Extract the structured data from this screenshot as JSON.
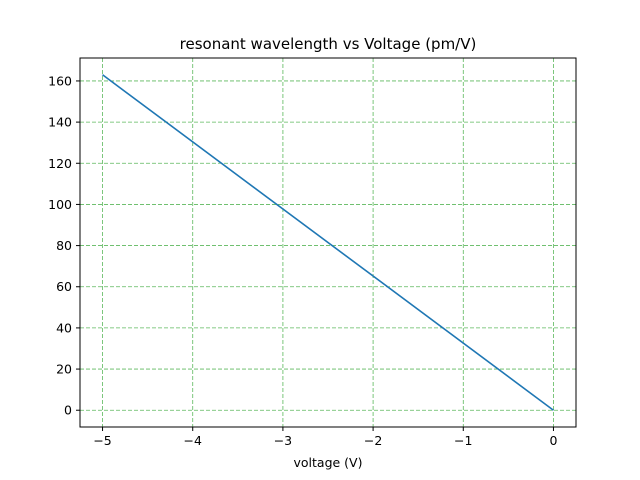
{
  "chart_data": {
    "type": "line",
    "title": "resonant wavelength vs Voltage (pm/V)",
    "xlabel": "voltage (V)",
    "ylabel": "",
    "xlim": [
      -5.25,
      0.25
    ],
    "ylim": [
      -8.15,
      171.15
    ],
    "x_ticks": [
      -5,
      -4,
      -3,
      -2,
      -1,
      0
    ],
    "x_tick_labels": [
      "−5",
      "−4",
      "−3",
      "−2",
      "−1",
      "0"
    ],
    "y_ticks": [
      0,
      20,
      40,
      60,
      80,
      100,
      120,
      140,
      160
    ],
    "y_tick_labels": [
      "0",
      "20",
      "40",
      "60",
      "80",
      "100",
      "120",
      "140",
      "160"
    ],
    "grid": true,
    "grid_color": "#5cb85c",
    "series": [
      {
        "color": "#1f77b4",
        "x": [
          -5,
          0
        ],
        "y": [
          163,
          0
        ]
      }
    ]
  }
}
